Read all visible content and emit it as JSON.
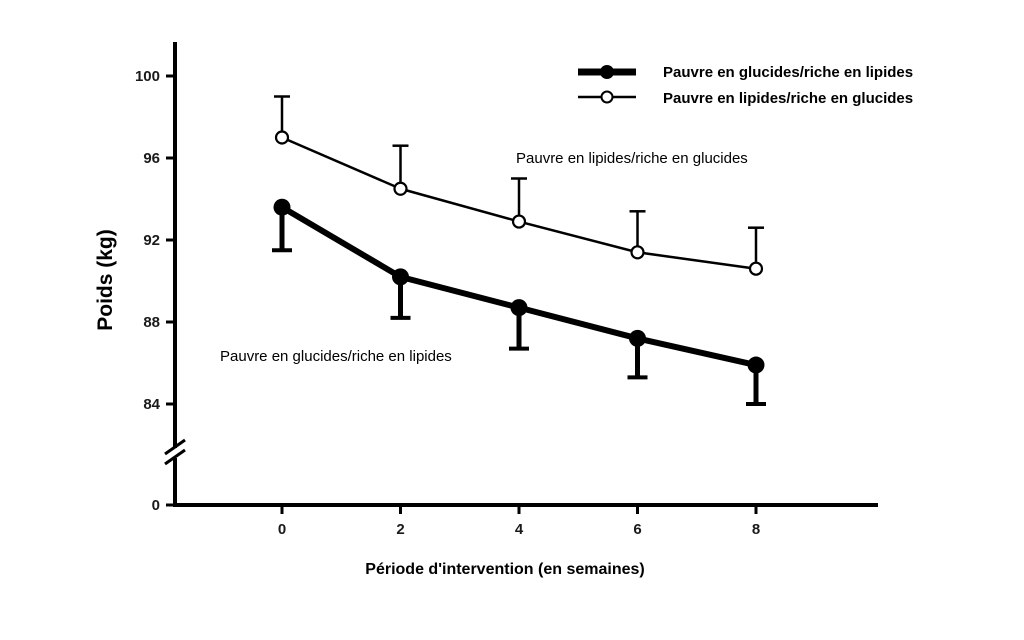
{
  "chart_data": {
    "type": "line",
    "xlabel": "Période d'intervention (en semaines)",
    "ylabel": "Poids (kg)",
    "x": [
      0,
      2,
      4,
      6,
      8
    ],
    "x_tick_labels": [
      "0",
      "2",
      "4",
      "6",
      "8"
    ],
    "y_tick_labels": [
      "0",
      "84",
      "88",
      "92",
      "96",
      "100"
    ],
    "ylim": [
      84,
      100
    ],
    "y_axis_break": true,
    "grid": false,
    "legend_position": "top-right",
    "series": [
      {
        "name": "Pauvre en glucides/riche en lipides",
        "marker": "filled-circle",
        "line": "thick",
        "color": "#000000",
        "values": [
          93.6,
          90.2,
          88.7,
          87.2,
          85.9
        ],
        "error_low": [
          2.1,
          2.0,
          2.0,
          1.9,
          1.9
        ]
      },
      {
        "name": "Pauvre en lipides/riche en glucides",
        "marker": "open-circle",
        "line": "thin",
        "color": "#000000",
        "values": [
          97.0,
          94.5,
          92.9,
          91.4,
          90.6
        ],
        "error_high": [
          2.0,
          2.1,
          2.1,
          2.0,
          2.0
        ]
      }
    ],
    "annotations": [
      "Pauvre en lipides/riche en glucides",
      "Pauvre en glucides/riche en lipides"
    ]
  }
}
